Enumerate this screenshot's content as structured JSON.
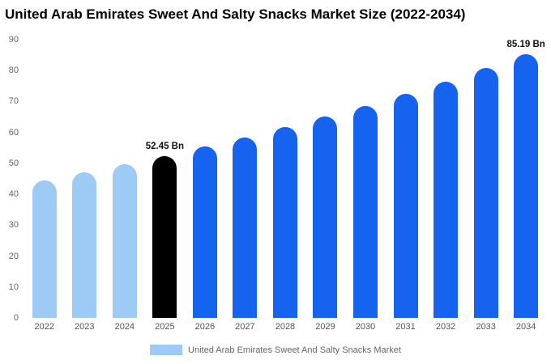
{
  "chart_data": {
    "type": "bar",
    "title": "United Arab Emirates Sweet And Salty Snacks Market Size (2022-2034)",
    "categories": [
      "2022",
      "2023",
      "2024",
      "2025",
      "2026",
      "2027",
      "2028",
      "2029",
      "2030",
      "2031",
      "2032",
      "2033",
      "2034"
    ],
    "values": [
      44.6,
      47.1,
      49.7,
      52.45,
      55.36,
      58.42,
      61.66,
      65.07,
      68.68,
      72.48,
      76.5,
      80.73,
      85.19
    ],
    "point_labels": [
      "",
      "",
      "",
      "52.45 Bn",
      "",
      "",
      "",
      "",
      "",
      "",
      "",
      "",
      "85.19 Bn"
    ],
    "bar_color_keys": [
      "light",
      "light",
      "light",
      "black",
      "blue",
      "blue",
      "blue",
      "blue",
      "blue",
      "blue",
      "blue",
      "blue",
      "blue"
    ],
    "colors": {
      "light": "#9ecbf5",
      "black": "#000000",
      "blue": "#1563ef"
    },
    "ylim": [
      0,
      90
    ],
    "yticks": [
      0,
      10,
      20,
      30,
      40,
      50,
      60,
      70,
      80,
      90
    ],
    "grid": false,
    "legend_position": "bottom",
    "xlabel": "",
    "ylabel": "",
    "legend": {
      "label": "United Arab Emirates Sweet And Salty Snacks Market"
    }
  }
}
